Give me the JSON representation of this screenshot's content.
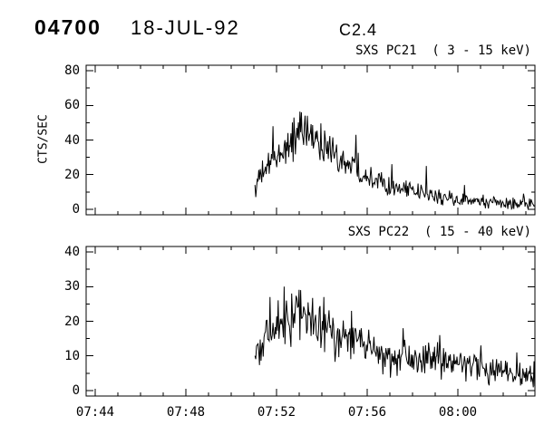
{
  "header": {
    "flare_number": "04700",
    "date": "18-JUL-92",
    "goes_class": "C2.4"
  },
  "chart_data": {
    "type": "line",
    "line_color": "#000000",
    "x": {
      "unit": "time (UT, minutes after 07:00)",
      "range_minutes": [
        43.6,
        63.4
      ],
      "minor_step": 1,
      "major_ticks": [
        {
          "t": 44,
          "label": "07:44"
        },
        {
          "t": 48,
          "label": "07:48"
        },
        {
          "t": 52,
          "label": "07:52"
        },
        {
          "t": 56,
          "label": "07:56"
        },
        {
          "t": 60,
          "label": "08:00"
        }
      ]
    },
    "panels": [
      {
        "title": "SXS PC21  ( 3 - 15 keV)",
        "ylabel": "CTS/SEC",
        "ylim": [
          0,
          80
        ],
        "yticks": [
          0,
          20,
          40,
          60,
          80
        ],
        "ytick_minor_step": 10,
        "series": {
          "name": "SXS PC21",
          "start_minute": 51.05,
          "end_minute": 63.4,
          "envelope": [
            [
              51.05,
              13
            ],
            [
              51.3,
              19
            ],
            [
              51.6,
              24
            ],
            [
              52.0,
              30
            ],
            [
              52.4,
              36
            ],
            [
              52.8,
              40
            ],
            [
              53.2,
              43
            ],
            [
              53.6,
              42
            ],
            [
              54.0,
              38
            ],
            [
              54.4,
              34
            ],
            [
              54.8,
              30
            ],
            [
              55.2,
              26
            ],
            [
              55.6,
              23
            ],
            [
              56.0,
              20
            ],
            [
              56.5,
              17
            ],
            [
              57.0,
              14
            ],
            [
              57.5,
              12
            ],
            [
              58.0,
              10
            ],
            [
              58.5,
              9
            ],
            [
              59.0,
              7.5
            ],
            [
              59.5,
              6.5
            ],
            [
              60.0,
              5.5
            ],
            [
              60.5,
              5
            ],
            [
              61.0,
              4.5
            ],
            [
              61.5,
              4
            ],
            [
              62.0,
              3.5
            ],
            [
              62.5,
              3.5
            ],
            [
              63.0,
              3
            ],
            [
              63.4,
              3
            ]
          ],
          "noise_sigma_base": 1.5,
          "noise_sigma_scale": 0.1,
          "spikes": [
            [
              51.85,
              48
            ],
            [
              52.75,
              53
            ],
            [
              53.1,
              56
            ],
            [
              53.35,
              54
            ],
            [
              55.5,
              43
            ],
            [
              57.1,
              26
            ],
            [
              58.6,
              25
            ],
            [
              60.3,
              14
            ],
            [
              62.9,
              9
            ]
          ]
        }
      },
      {
        "title": "SXS PC22  ( 15 - 40 keV)",
        "ylabel": "",
        "ylim": [
          0,
          40
        ],
        "yticks": [
          0,
          10,
          20,
          30,
          40
        ],
        "ytick_minor_step": 5,
        "series": {
          "name": "SXS PC22",
          "start_minute": 51.05,
          "end_minute": 63.4,
          "envelope": [
            [
              51.05,
              14
            ],
            [
              51.4,
              15
            ],
            [
              51.8,
              17
            ],
            [
              52.2,
              19
            ],
            [
              52.6,
              20
            ],
            [
              53.0,
              21
            ],
            [
              53.4,
              20.5
            ],
            [
              53.8,
              19
            ],
            [
              54.2,
              17.5
            ],
            [
              54.6,
              16
            ],
            [
              55.0,
              15
            ],
            [
              55.5,
              13.5
            ],
            [
              56.0,
              12.5
            ],
            [
              56.5,
              11.5
            ],
            [
              57.0,
              10.5
            ],
            [
              57.5,
              10
            ],
            [
              58.0,
              9.5
            ],
            [
              58.5,
              9
            ],
            [
              59.0,
              8.5
            ],
            [
              59.5,
              8
            ],
            [
              60.0,
              7.5
            ],
            [
              60.5,
              7
            ],
            [
              61.0,
              6.5
            ],
            [
              61.5,
              6
            ],
            [
              62.0,
              5.5
            ],
            [
              62.5,
              5
            ],
            [
              63.0,
              4.5
            ],
            [
              63.4,
              4.5
            ]
          ],
          "noise_sigma_base": 1.2,
          "noise_sigma_scale": 0.12,
          "spikes": [
            [
              51.7,
              27
            ],
            [
              52.35,
              30
            ],
            [
              53.05,
              29
            ],
            [
              54.1,
              27
            ],
            [
              55.3,
              23
            ],
            [
              57.6,
              18
            ],
            [
              59.2,
              16
            ],
            [
              61.0,
              13
            ],
            [
              62.6,
              11
            ]
          ]
        }
      }
    ]
  }
}
